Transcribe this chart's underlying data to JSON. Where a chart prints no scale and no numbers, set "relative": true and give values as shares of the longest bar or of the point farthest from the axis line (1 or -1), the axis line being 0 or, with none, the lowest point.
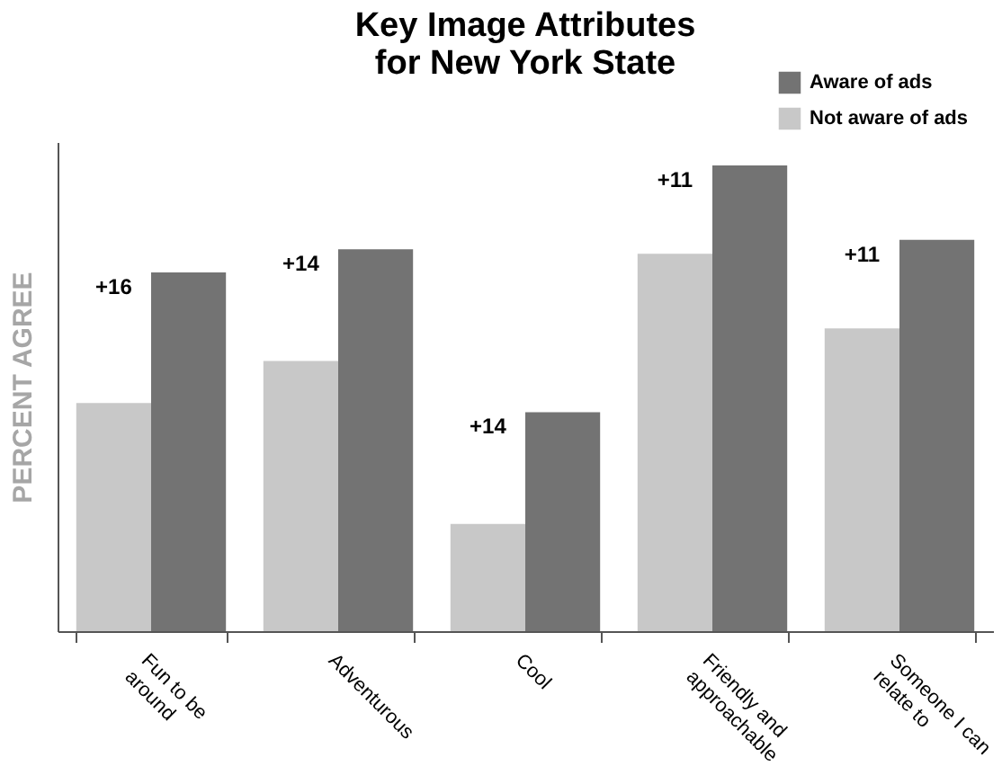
{
  "chart_data": {
    "type": "bar",
    "title": "Key Image Attributes for New York State",
    "ylabel": "PERCENT AGREE",
    "relative": true,
    "legend": "top right",
    "categories": [
      "Fun to be around",
      "Adventurous",
      "Cool",
      "Friendly and approachable",
      "Someone I can relate to"
    ],
    "series": [
      {
        "name": "Not aware of ads",
        "color": "#c8c8c8",
        "values": [
          0.49,
          0.58,
          0.23,
          0.81,
          0.65
        ]
      },
      {
        "name": "Aware of ads",
        "color": "#737373",
        "values": [
          0.77,
          0.82,
          0.47,
          1,
          0.84
        ]
      }
    ],
    "annotations": [
      {
        "text": "+16",
        "x": "Fun to be around",
        "y": 0.77
      },
      {
        "text": "+14",
        "x": "Adventurous",
        "y": 0.82
      },
      {
        "text": "+14",
        "x": "Cool",
        "y": 0.47
      },
      {
        "text": "+11",
        "x": "Friendly and approachable",
        "y": 1
      },
      {
        "text": "+11",
        "x": "Someone I can relate to",
        "y": 0.84
      }
    ]
  }
}
